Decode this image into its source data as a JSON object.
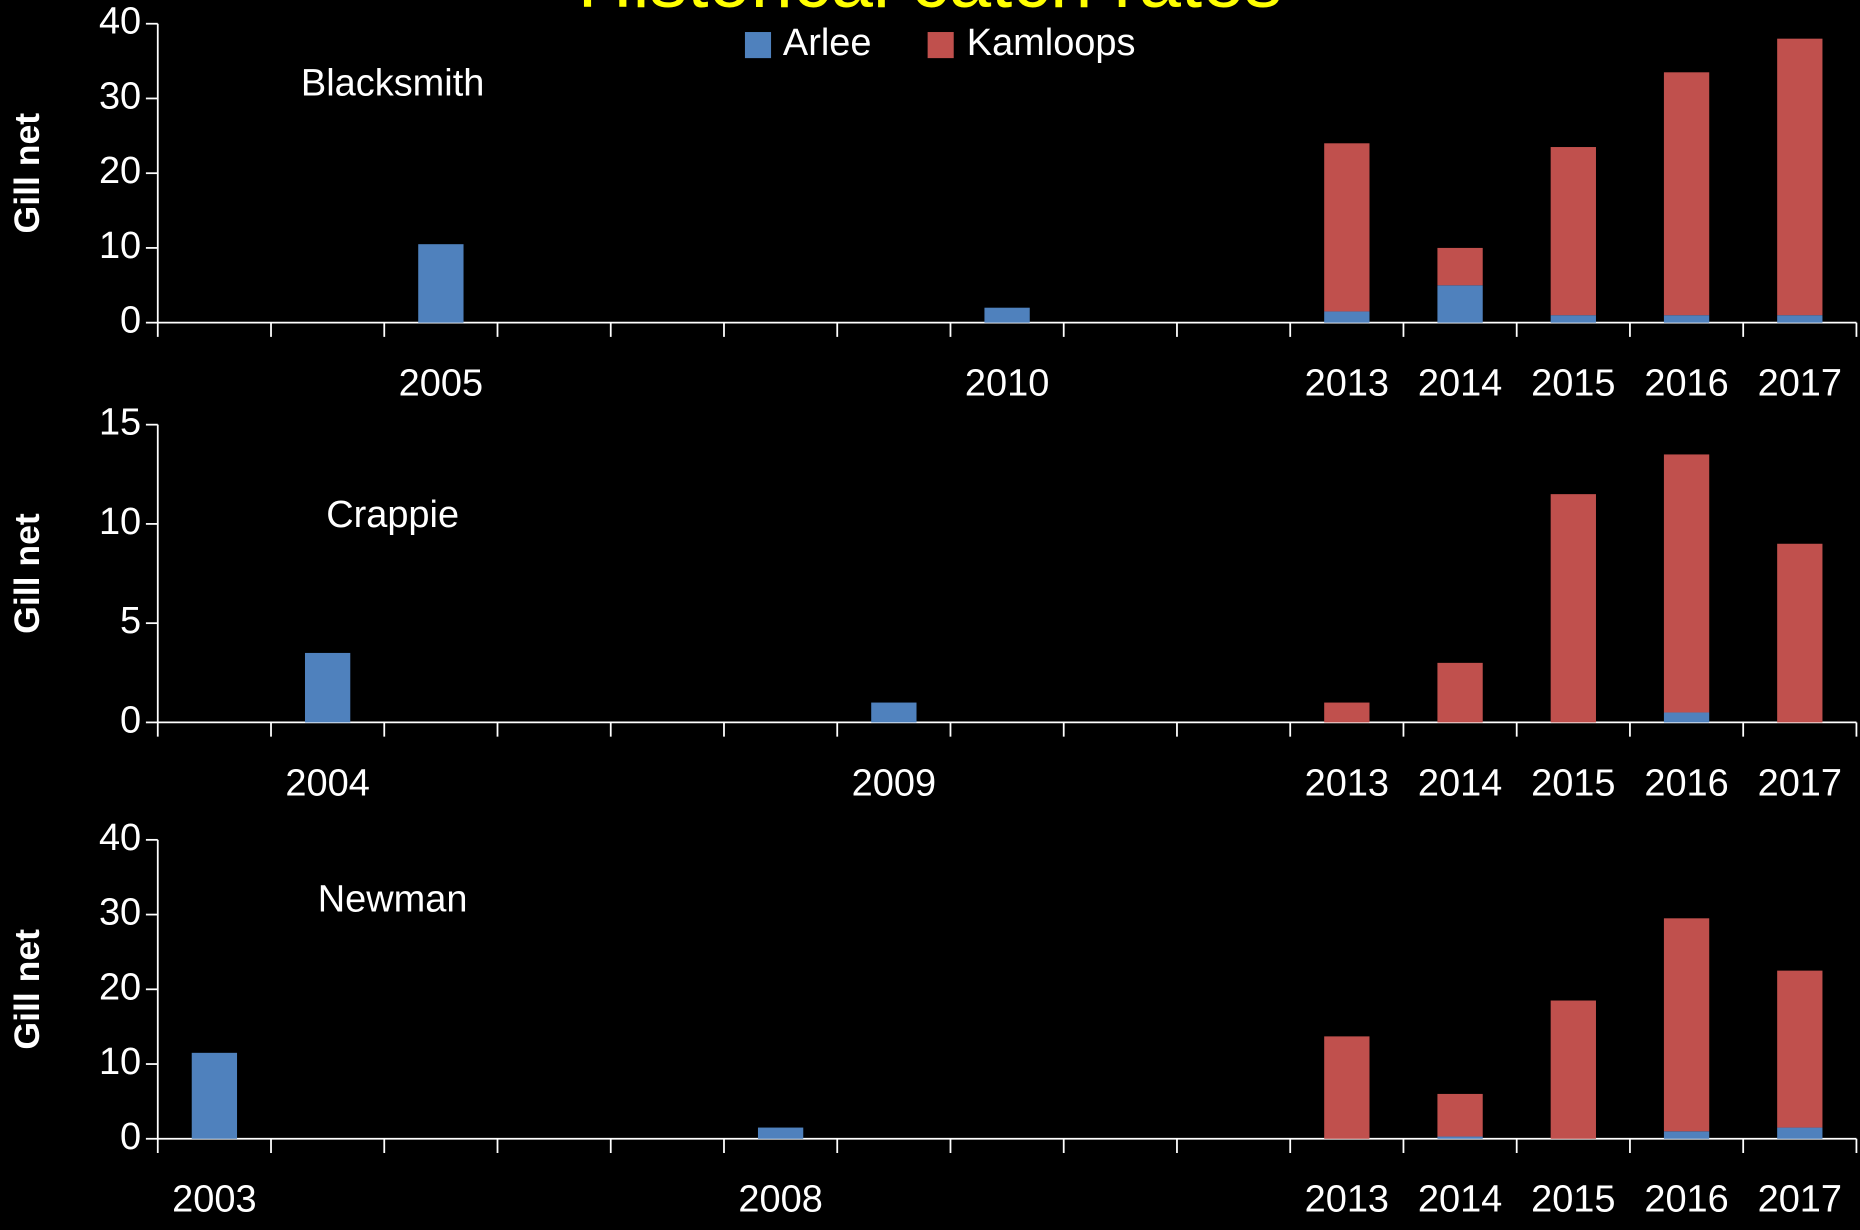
{
  "title": "Historical catch rates",
  "chart_data": [
    {
      "type": "bar",
      "stacked": true,
      "annotation": "Blacksmith",
      "ylabel": "Gill net",
      "categories": [
        null,
        null,
        "2005",
        null,
        null,
        null,
        null,
        "2010",
        null,
        null,
        "2013",
        "2014",
        "2015",
        "2016",
        "2017"
      ],
      "series": [
        {
          "name": "Arlee",
          "color": "#4f81bd",
          "values": [
            null,
            null,
            10.5,
            null,
            null,
            null,
            null,
            2,
            null,
            null,
            1.5,
            5,
            1,
            1,
            1
          ]
        },
        {
          "name": "Kamloops",
          "color": "#c0504d",
          "values": [
            null,
            null,
            null,
            null,
            null,
            null,
            null,
            null,
            null,
            null,
            22.5,
            5,
            22.5,
            32.5,
            37
          ]
        }
      ],
      "ylim": [
        0,
        40
      ],
      "yticks": [
        0,
        10,
        20,
        30,
        40
      ]
    },
    {
      "type": "bar",
      "stacked": true,
      "annotation": "Crappie",
      "ylabel": "Gill net",
      "categories": [
        null,
        "2004",
        null,
        null,
        null,
        null,
        "2009",
        null,
        null,
        null,
        "2013",
        "2014",
        "2015",
        "2016",
        "2017"
      ],
      "series": [
        {
          "name": "Arlee",
          "color": "#4f81bd",
          "values": [
            null,
            3.5,
            null,
            null,
            null,
            null,
            1,
            null,
            null,
            null,
            null,
            null,
            null,
            0.5,
            null
          ]
        },
        {
          "name": "Kamloops",
          "color": "#c0504d",
          "values": [
            null,
            null,
            null,
            null,
            null,
            null,
            null,
            null,
            null,
            null,
            1,
            3,
            11.5,
            13,
            9
          ]
        }
      ],
      "ylim": [
        0,
        15
      ],
      "yticks": [
        0,
        5,
        10,
        15
      ]
    },
    {
      "type": "bar",
      "stacked": true,
      "annotation": "Newman",
      "ylabel": "Gill net",
      "categories": [
        "2003",
        null,
        null,
        null,
        null,
        "2008",
        null,
        null,
        null,
        null,
        "2013",
        "2014",
        "2015",
        "2016",
        "2017"
      ],
      "series": [
        {
          "name": "Arlee",
          "color": "#4f81bd",
          "values": [
            11.5,
            null,
            null,
            null,
            null,
            1.5,
            null,
            null,
            null,
            null,
            null,
            0.3,
            null,
            1,
            1.5
          ]
        },
        {
          "name": "Kamloops",
          "color": "#c0504d",
          "values": [
            null,
            null,
            null,
            null,
            null,
            null,
            null,
            null,
            null,
            null,
            13.7,
            5.7,
            18.5,
            28.5,
            21
          ]
        }
      ],
      "ylim": [
        0,
        40
      ],
      "yticks": [
        0,
        10,
        20,
        30,
        40
      ]
    }
  ]
}
